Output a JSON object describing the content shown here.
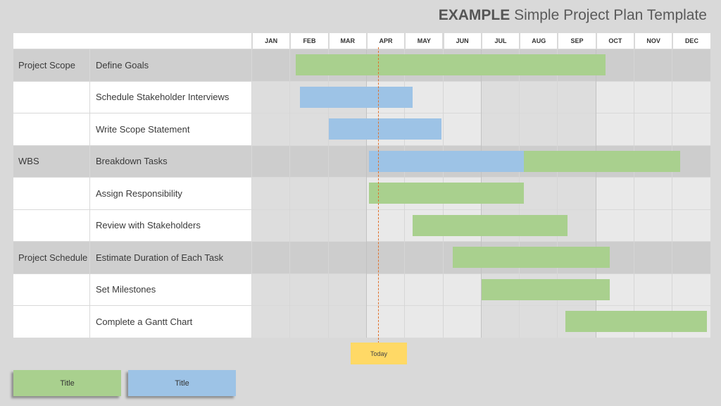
{
  "header": {
    "title_bold": "EXAMPLE",
    "title_rest": "Simple Project Plan Template"
  },
  "months": [
    "JAN",
    "FEB",
    "MAR",
    "APR",
    "MAY",
    "JUN",
    "JUL",
    "AUG",
    "SEP",
    "OCT",
    "NOV",
    "DEC"
  ],
  "rows": [
    {
      "category": "Project Scope",
      "task": "Define Goals",
      "bar_color": "green",
      "start_month": 2.15,
      "end_month": 10.25
    },
    {
      "category": "",
      "task": "Schedule Stakeholder Interviews",
      "bar_color": "blue",
      "start_month": 2.25,
      "end_month": 5.2
    },
    {
      "category": "",
      "task": "Write Scope Statement",
      "bar_color": "blue",
      "start_month": 3.0,
      "end_month": 5.95
    },
    {
      "category": "WBS",
      "task": "Breakdown Tasks",
      "segments": [
        {
          "bar_color": "blue",
          "start_month": 4.05,
          "end_month": 8.1
        },
        {
          "bar_color": "green",
          "start_month": 8.1,
          "end_month": 12.2
        }
      ]
    },
    {
      "category": "",
      "task": "Assign Responsibility",
      "bar_color": "green",
      "start_month": 4.05,
      "end_month": 8.1
    },
    {
      "category": "",
      "task": "Review with Stakeholders",
      "bar_color": "green",
      "start_month": 5.2,
      "end_month": 9.25
    },
    {
      "category": "Project Schedule",
      "task": "Estimate Duration of Each Task",
      "bar_color": "green",
      "start_month": 6.25,
      "end_month": 10.35
    },
    {
      "category": "",
      "task": "Set Milestones",
      "bar_color": "green",
      "start_month": 7.0,
      "end_month": 10.35
    },
    {
      "category": "",
      "task": "Complete a Gantt Chart",
      "bar_color": "green",
      "start_month": 9.2,
      "end_month": 12.9
    }
  ],
  "today": {
    "label": "Today",
    "month": 4.3
  },
  "legend": [
    {
      "label": "Title",
      "color": "#a9d08e"
    },
    {
      "label": "Title",
      "color": "#9dc3e6"
    }
  ],
  "colors": {
    "green": "#a9d08e",
    "blue": "#9dc3e6",
    "today": "#ffd966",
    "today_line": "#e0702a"
  }
}
